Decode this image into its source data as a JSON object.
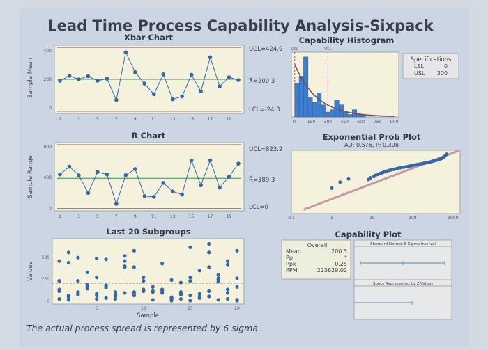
{
  "title": "Lead Time Process Capability Analysis-Sixpack",
  "caption": "The actual process spread is represented by 6 sigma.",
  "colors": {
    "background": "#ccd5e4",
    "plot_bg": "#f4f1dc",
    "points": "#3566a8",
    "control_limit": "#b07a80",
    "center_line": "#6aa87e",
    "bars": "#3f7fcf",
    "spec_line": "#8a5a7a"
  },
  "chart_data": [
    {
      "type": "line",
      "title": "Xbar Chart",
      "ylabel": "Sample Mean",
      "x": [
        1,
        2,
        3,
        4,
        5,
        6,
        7,
        8,
        9,
        10,
        11,
        12,
        13,
        14,
        15,
        16,
        17,
        18,
        19,
        20
      ],
      "values": [
        190,
        225,
        200,
        222,
        190,
        205,
        55,
        390,
        250,
        170,
        95,
        235,
        60,
        80,
        232,
        115,
        355,
        150,
        215,
        195
      ],
      "xticks": [
        "1",
        "3",
        "5",
        "7",
        "9",
        "11",
        "13",
        "15",
        "17",
        "19"
      ],
      "yticks": [
        "0",
        "200",
        "400"
      ],
      "ylim": [
        -40,
        440
      ],
      "ucl": 424.9,
      "center": 200.3,
      "lcl": -24.3,
      "ucl_label": "UCL=424.9",
      "center_label": "X̿=200.3",
      "lcl_label": "LCL=-24.3"
    },
    {
      "type": "line",
      "title": "R Chart",
      "ylabel": "Sample Range",
      "x": [
        1,
        2,
        3,
        4,
        5,
        6,
        7,
        8,
        9,
        10,
        11,
        12,
        13,
        14,
        15,
        16,
        17,
        18,
        19,
        20
      ],
      "values": [
        440,
        540,
        430,
        200,
        470,
        440,
        60,
        430,
        510,
        160,
        150,
        330,
        220,
        180,
        620,
        300,
        620,
        270,
        410,
        580
      ],
      "xticks": [
        "1",
        "3",
        "5",
        "7",
        "9",
        "11",
        "13",
        "15",
        "17",
        "19"
      ],
      "yticks": [
        "0",
        "400",
        "800"
      ],
      "ylim": [
        -30,
        850
      ],
      "ucl": 823.2,
      "center": 389.3,
      "lcl": 0,
      "ucl_label": "UCL=823.2",
      "center_label": "R̄=389.3",
      "lcl_label": "LCL=0"
    },
    {
      "type": "scatter",
      "title": "Last 20 Subgroups",
      "xlabel": "Sample",
      "ylabel": "Values",
      "xticks": [
        "5",
        "10",
        "15",
        "20"
      ],
      "yticks": [
        "0",
        "250",
        "500"
      ],
      "ylim": [
        -40,
        720
      ],
      "center": 200.3,
      "subgroups": [
        [
          20,
          110,
          230,
          460,
          130
        ],
        [
          10,
          40,
          60,
          440,
          560
        ],
        [
          70,
          100,
          230,
          500,
          90
        ],
        [
          140,
          170,
          330,
          190,
          160
        ],
        [
          20,
          80,
          270,
          490,
          60
        ],
        [
          30,
          150,
          180,
          480,
          170
        ],
        [
          20,
          50,
          80,
          100,
          60
        ],
        [
          90,
          390,
          460,
          520,
          400
        ],
        [
          60,
          90,
          390,
          580,
          100
        ],
        [
          110,
          130,
          230,
          270,
          120
        ],
        [
          10,
          100,
          160,
          110,
          110
        ],
        [
          90,
          130,
          430,
          100,
          120
        ],
        [
          0,
          20,
          40,
          240,
          30
        ],
        [
          20,
          70,
          100,
          210,
          90
        ],
        [
          0,
          60,
          230,
          270,
          620
        ],
        [
          30,
          50,
          80,
          350,
          40
        ],
        [
          50,
          110,
          390,
          560,
          660
        ],
        [
          10,
          220,
          260,
          300,
          240
        ],
        [
          20,
          90,
          130,
          420,
          460
        ],
        [
          0,
          10,
          160,
          260,
          580
        ]
      ]
    },
    {
      "type": "bar",
      "title": "Capability Histogram",
      "xticks": [
        "0",
        "150",
        "300",
        "450",
        "600",
        "750",
        "900"
      ],
      "xlim": [
        -30,
        940
      ],
      "bin_width": 40,
      "bin_starts": [
        0,
        40,
        80,
        120,
        160,
        200,
        240,
        280,
        320,
        360,
        400,
        440,
        480,
        520,
        560,
        600
      ],
      "values": [
        14,
        17,
        25,
        8,
        6,
        10,
        5,
        2,
        3,
        7,
        5,
        2,
        1,
        3,
        1,
        1
      ],
      "lsl": 0,
      "usl": 300,
      "lsl_label": "LSL",
      "usl_label": "USL",
      "fit": "exponential",
      "fit_mean": 200.3
    },
    {
      "type": "scatter",
      "title": "Exponential Prob Plot",
      "subtitle": "AD: 0.576, P: 0.398",
      "xscale": "log",
      "xlim": [
        0.1,
        1500
      ],
      "xticks": [
        "0.1",
        "1",
        "10",
        "100",
        "1000"
      ],
      "points_x": [
        1,
        1.6,
        2.6,
        8,
        9,
        11,
        12,
        14,
        16,
        18,
        20,
        23,
        26,
        30,
        35,
        40,
        45,
        50,
        60,
        70,
        80,
        90,
        100,
        115,
        130,
        150,
        170,
        190,
        210,
        240,
        270,
        300,
        330,
        360,
        400,
        440,
        480,
        520,
        560,
        600,
        640,
        700
      ],
      "fit_mean": 200.3
    }
  ],
  "specifications": {
    "title": "Specifications",
    "rows": [
      {
        "label": "LSL",
        "value": "0"
      },
      {
        "label": "USL",
        "value": "300"
      }
    ]
  },
  "capability": {
    "title": "Capability Plot",
    "overall_title": "Overall",
    "rows": [
      {
        "label": "Mean",
        "value": "200.3"
      },
      {
        "label": "Pp",
        "value": "*"
      },
      {
        "label": "Ppk",
        "value": "0.25"
      },
      {
        "label": "PPM",
        "value": "223629.02"
      }
    ],
    "panel1_title": "Standard Normal 6 Sigma Interval",
    "panel2_title": "Specs Represented by Z-Values"
  }
}
